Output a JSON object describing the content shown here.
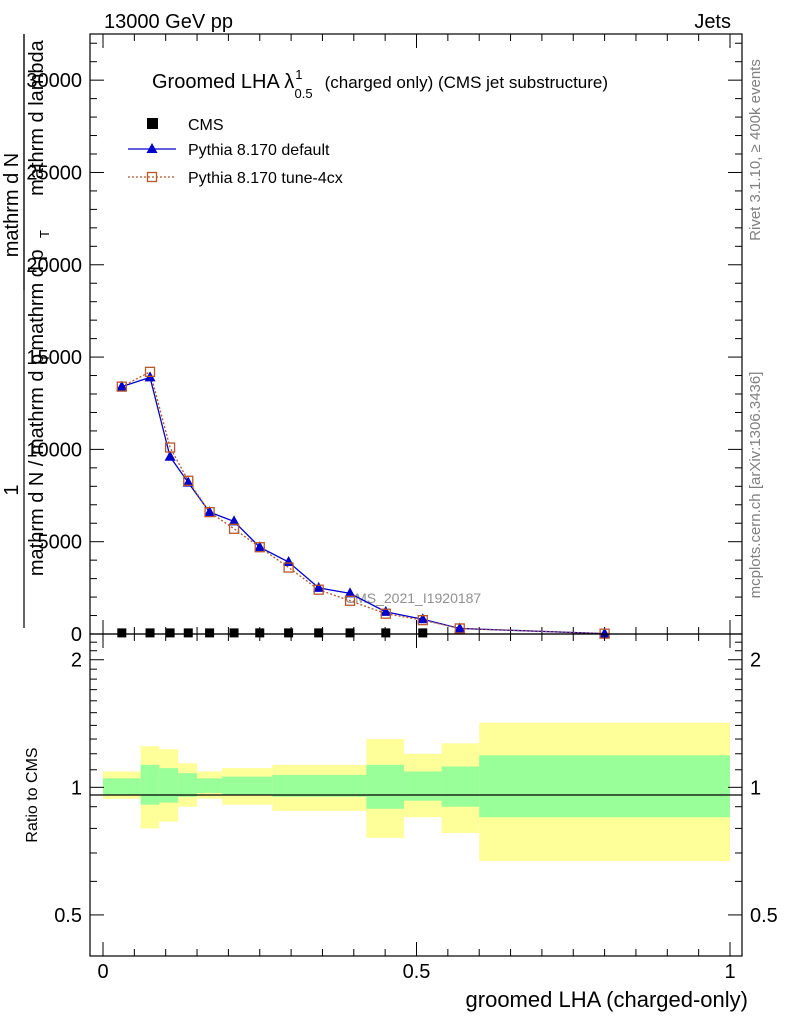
{
  "header": {
    "energy_label": "13000 GeV pp",
    "topic_label": "Jets",
    "rivet_label": "Rivet 3.1.10, ≥ 400k events",
    "mcplots_label": "mcplots.cern.ch [arXiv:1306.3436]",
    "analysis_label": "CMS_2021_I1920187"
  },
  "colors": {
    "cms": "#000000",
    "pythia_default": "#0000cc",
    "pythia_tune": "#b8572a",
    "band_inner": "#99ff99",
    "band_outer": "#ffff99"
  },
  "chart_data": [
    {
      "type": "line",
      "title": "Groomed LHA λ",
      "title_sup": "1",
      "title_sub": "0.5",
      "title_suffix": "(charged only) (CMS jet substructure)",
      "ylabel_lines": [
        "1",
        "mathrm d N / mathrm d p",
        "mathrm d p",
        "mathrm d lambda",
        "mathrm d N"
      ],
      "ylabel_subs": [
        "T",
        "T"
      ],
      "xlim": [
        0,
        1
      ],
      "ylim": [
        0,
        32500
      ],
      "yticks": [
        0,
        5000,
        10000,
        15000,
        20000,
        25000,
        30000
      ],
      "ytick_labels": [
        "0",
        "5000",
        "10000",
        "15000",
        "20000",
        "25000",
        "30000"
      ],
      "legend_position": "top-left",
      "series": [
        {
          "name": "CMS",
          "marker": "square",
          "x": [
            0.03,
            0.075,
            0.107,
            0.136,
            0.17,
            0.209,
            0.25,
            0.296,
            0.344,
            0.394,
            0.451,
            0.51
          ],
          "y": [
            60,
            60,
            60,
            60,
            60,
            60,
            60,
            60,
            60,
            60,
            60,
            60
          ]
        },
        {
          "name": "Pythia 8.170 default",
          "marker": "triangle",
          "x": [
            0.03,
            0.075,
            0.107,
            0.136,
            0.17,
            0.209,
            0.25,
            0.296,
            0.344,
            0.394,
            0.451,
            0.51,
            0.569,
            0.8
          ],
          "y": [
            13400,
            13900,
            9600,
            8200,
            6600,
            6100,
            4700,
            3900,
            2500,
            2200,
            1200,
            800,
            300,
            20
          ]
        },
        {
          "name": "Pythia 8.170 tune-4cx",
          "marker": "open-square",
          "x": [
            0.03,
            0.075,
            0.107,
            0.136,
            0.17,
            0.209,
            0.25,
            0.296,
            0.344,
            0.394,
            0.451,
            0.51,
            0.569,
            0.8
          ],
          "y": [
            13400,
            14200,
            10100,
            8300,
            6600,
            5700,
            4700,
            3600,
            2400,
            1800,
            1100,
            750,
            300,
            20
          ]
        }
      ]
    },
    {
      "type": "area",
      "ylabel": "Ratio to CMS",
      "xlabel": "groomed LHA (charged-only)",
      "xlim": [
        0,
        1
      ],
      "ylim": [
        0.4,
        2.3
      ],
      "yscale": "log",
      "xticks": [
        0,
        0.5,
        1
      ],
      "xtick_labels": [
        "0",
        "0.5",
        "1"
      ],
      "yticks": [
        0.5,
        1,
        2
      ],
      "ytick_labels": [
        "0.5",
        "1",
        "2"
      ],
      "bins": [
        {
          "x0": 0.0,
          "x1": 0.06,
          "inner_lo": 0.96,
          "inner_hi": 1.05,
          "outer_lo": 0.94,
          "outer_hi": 1.09
        },
        {
          "x0": 0.06,
          "x1": 0.09,
          "inner_lo": 0.91,
          "inner_hi": 1.13,
          "outer_lo": 0.8,
          "outer_hi": 1.25
        },
        {
          "x0": 0.09,
          "x1": 0.12,
          "inner_lo": 0.92,
          "inner_hi": 1.11,
          "outer_lo": 0.83,
          "outer_hi": 1.23
        },
        {
          "x0": 0.12,
          "x1": 0.15,
          "inner_lo": 0.95,
          "inner_hi": 1.08,
          "outer_lo": 0.9,
          "outer_hi": 1.14
        },
        {
          "x0": 0.15,
          "x1": 0.19,
          "inner_lo": 0.97,
          "inner_hi": 1.05,
          "outer_lo": 0.94,
          "outer_hi": 1.09
        },
        {
          "x0": 0.19,
          "x1": 0.27,
          "inner_lo": 0.96,
          "inner_hi": 1.06,
          "outer_lo": 0.91,
          "outer_hi": 1.11
        },
        {
          "x0": 0.27,
          "x1": 0.42,
          "inner_lo": 0.95,
          "inner_hi": 1.07,
          "outer_lo": 0.88,
          "outer_hi": 1.13
        },
        {
          "x0": 0.42,
          "x1": 0.48,
          "inner_lo": 0.89,
          "inner_hi": 1.13,
          "outer_lo": 0.76,
          "outer_hi": 1.3
        },
        {
          "x0": 0.48,
          "x1": 0.54,
          "inner_lo": 0.93,
          "inner_hi": 1.09,
          "outer_lo": 0.85,
          "outer_hi": 1.2
        },
        {
          "x0": 0.54,
          "x1": 0.6,
          "inner_lo": 0.9,
          "inner_hi": 1.12,
          "outer_lo": 0.78,
          "outer_hi": 1.27
        },
        {
          "x0": 0.6,
          "x1": 1.0,
          "inner_lo": 0.85,
          "inner_hi": 1.19,
          "outer_lo": 0.67,
          "outer_hi": 1.42
        }
      ]
    }
  ]
}
